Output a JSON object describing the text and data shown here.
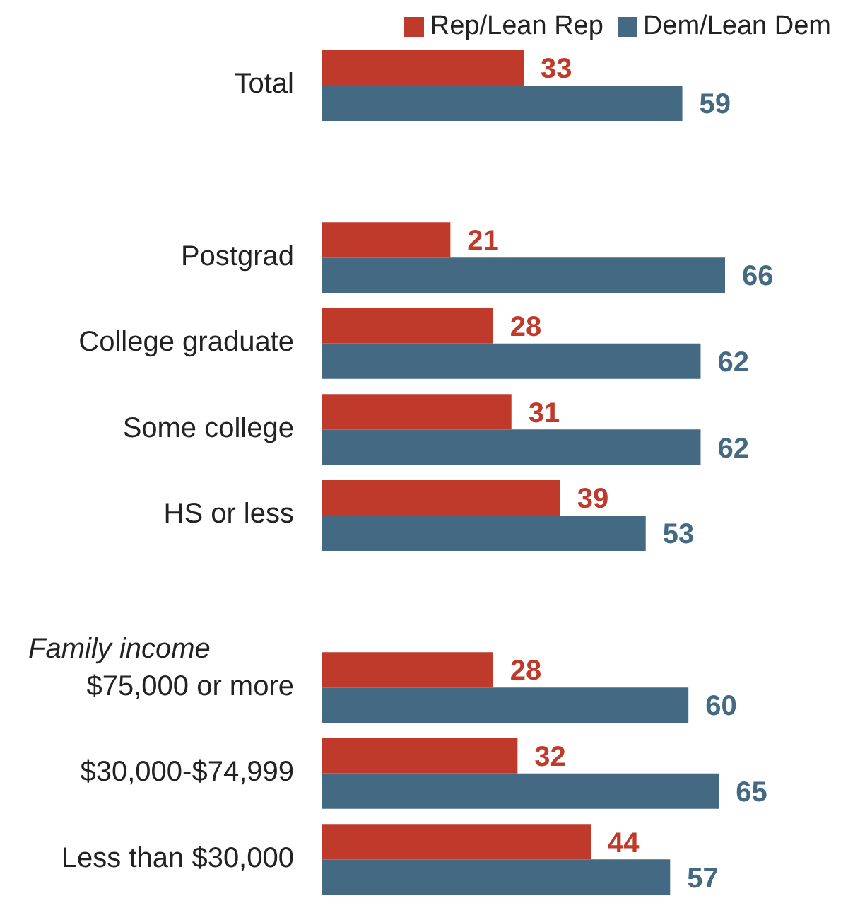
{
  "chart_data": {
    "type": "bar",
    "orientation": "horizontal",
    "categories": [
      "Total",
      null,
      "Postgrad",
      "College graduate",
      "Some college",
      "HS or less",
      null,
      "$75,000 or more",
      "$30,000-$74,999",
      "Less than $30,000"
    ],
    "series": [
      {
        "name": "Rep/Lean Rep",
        "color": "#bf3a2b",
        "values": [
          33,
          null,
          21,
          28,
          31,
          39,
          null,
          28,
          32,
          44
        ]
      },
      {
        "name": "Dem/Lean Dem",
        "color": "#436983",
        "values": [
          59,
          null,
          66,
          62,
          62,
          53,
          null,
          60,
          65,
          57
        ]
      }
    ],
    "annotations": [
      "Family income"
    ],
    "data_labels": true,
    "legend": "top right",
    "tick_labels": "y",
    "grid": false
  }
}
